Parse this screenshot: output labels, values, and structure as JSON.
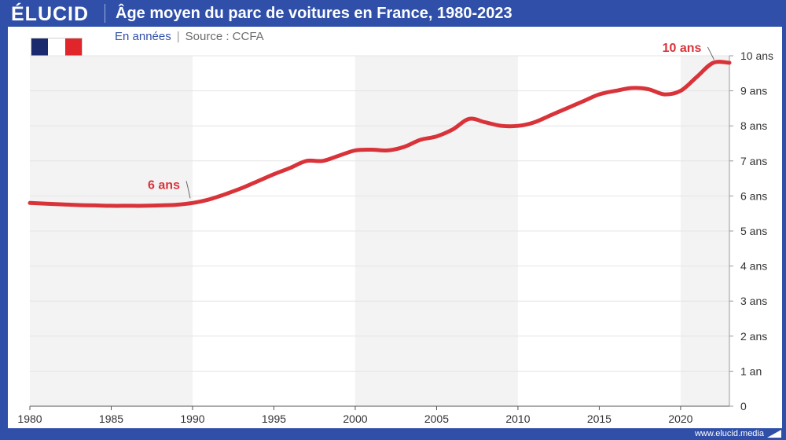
{
  "header": {
    "logo": "ÉLUCID",
    "title": "Âge moyen du parc de voitures en France, 1980-2023"
  },
  "subtitle": {
    "unit": "En années",
    "separator": "|",
    "source": "Source : CCFA"
  },
  "flag": {
    "icon": "france-flag-icon",
    "colors": [
      "#1a2a6c",
      "#ffffff",
      "#e0252b"
    ]
  },
  "footer": {
    "url": "www.elucid.media"
  },
  "colors": {
    "brand": "#2f4fa8",
    "line": "#d9333a",
    "band": "#f3f3f3",
    "grid": "#e4e4e4",
    "axis": "#9a9a9a"
  },
  "chart_data": {
    "type": "line",
    "title": "Âge moyen du parc de voitures en France, 1980-2023",
    "xlabel": "",
    "ylabel": "",
    "xlim": [
      1980,
      2023
    ],
    "ylim": [
      0,
      10
    ],
    "grid": true,
    "y_axis_side": "right",
    "x_ticks": [
      1980,
      1985,
      1990,
      1995,
      2000,
      2005,
      2010,
      2015,
      2020
    ],
    "y_ticks": [
      {
        "value": 0,
        "label": "0"
      },
      {
        "value": 1,
        "label": "1 an"
      },
      {
        "value": 2,
        "label": "2 ans"
      },
      {
        "value": 3,
        "label": "3 ans"
      },
      {
        "value": 4,
        "label": "4 ans"
      },
      {
        "value": 5,
        "label": "5 ans"
      },
      {
        "value": 6,
        "label": "6 ans"
      },
      {
        "value": 7,
        "label": "7 ans"
      },
      {
        "value": 8,
        "label": "8 ans"
      },
      {
        "value": 9,
        "label": "9 ans"
      },
      {
        "value": 10,
        "label": "10 ans"
      }
    ],
    "shaded_periods": [
      [
        1980,
        1990
      ],
      [
        2000,
        2010
      ],
      [
        2020,
        2023
      ]
    ],
    "series": [
      {
        "x": [
          1980,
          1981,
          1982,
          1983,
          1984,
          1985,
          1986,
          1987,
          1988,
          1989,
          1990,
          1991,
          1992,
          1993,
          1994,
          1995,
          1996,
          1997,
          1998,
          1999,
          2000,
          2001,
          2002,
          2003,
          2004,
          2005,
          2006,
          2007,
          2008,
          2009,
          2010,
          2011,
          2012,
          2013,
          2014,
          2015,
          2016,
          2017,
          2018,
          2019,
          2020,
          2021,
          2022,
          2023
        ],
        "values": [
          5.8,
          5.78,
          5.76,
          5.74,
          5.73,
          5.72,
          5.72,
          5.72,
          5.73,
          5.75,
          5.8,
          5.9,
          6.05,
          6.22,
          6.42,
          6.62,
          6.8,
          7.0,
          7.0,
          7.15,
          7.3,
          7.32,
          7.3,
          7.4,
          7.6,
          7.7,
          7.9,
          8.2,
          8.1,
          8.0,
          8.0,
          8.1,
          8.3,
          8.5,
          8.7,
          8.9,
          9.0,
          9.08,
          9.05,
          8.9,
          9.0,
          9.4,
          9.8,
          9.8
        ]
      }
    ],
    "annotations": [
      {
        "x": 1990,
        "y": 5.8,
        "label": "6 ans"
      },
      {
        "x": 2022.2,
        "y": 9.8,
        "label": "10 ans"
      }
    ]
  }
}
